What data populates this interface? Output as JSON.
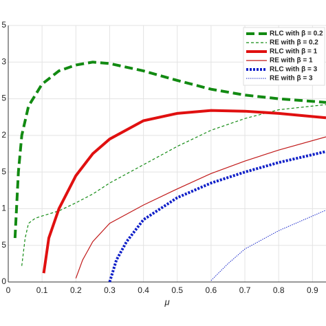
{
  "chart_data": {
    "type": "line",
    "xlabel": "μ",
    "xlim": [
      0,
      0.94
    ],
    "ylim": [
      0,
      3.5
    ],
    "xticks": [
      0,
      0.1,
      0.2,
      0.3,
      0.4,
      0.5,
      0.6,
      0.7,
      0.8,
      0.9
    ],
    "yticks": [
      0,
      {
        "value": 0.5,
        "label": "5"
      },
      1,
      {
        "value": 1.5,
        "label": "5"
      },
      2,
      {
        "value": 2.5,
        "label": "5"
      },
      3,
      {
        "value": 3.5,
        "label": "5"
      }
    ],
    "grid": true,
    "legend": "upper right",
    "series": [
      {
        "name": "RLC with β = 0.2",
        "color": "#128a12",
        "width": 4,
        "dash": "12 6",
        "x": [
          0.02,
          0.03,
          0.04,
          0.06,
          0.1,
          0.15,
          0.2,
          0.25,
          0.3,
          0.4,
          0.5,
          0.6,
          0.7,
          0.8,
          0.94
        ],
        "values": [
          0.6,
          1.5,
          2.0,
          2.4,
          2.7,
          2.88,
          2.96,
          3.0,
          2.98,
          2.88,
          2.75,
          2.63,
          2.55,
          2.5,
          2.45
        ]
      },
      {
        "name": "RE with β = 0.2",
        "color": "#128a12",
        "width": 1.2,
        "dash": "4 3",
        "x": [
          0.04,
          0.05,
          0.06,
          0.08,
          0.1,
          0.15,
          0.2,
          0.25,
          0.3,
          0.4,
          0.5,
          0.6,
          0.7,
          0.8,
          0.94
        ],
        "values": [
          0.22,
          0.6,
          0.8,
          0.87,
          0.9,
          0.97,
          1.08,
          1.2,
          1.35,
          1.6,
          1.85,
          2.07,
          2.23,
          2.35,
          2.42
        ]
      },
      {
        "name": "RLC with β = 1",
        "color": "#e01010",
        "width": 4,
        "dash": "none",
        "x": [
          0.105,
          0.12,
          0.15,
          0.2,
          0.25,
          0.3,
          0.4,
          0.5,
          0.6,
          0.7,
          0.8,
          0.94
        ],
        "values": [
          0.12,
          0.6,
          1.0,
          1.45,
          1.75,
          1.95,
          2.2,
          2.3,
          2.34,
          2.33,
          2.3,
          2.24
        ]
      },
      {
        "name": "RE with β = 1",
        "color": "#c01818",
        "width": 1.2,
        "dash": "none",
        "x": [
          0.2,
          0.22,
          0.25,
          0.3,
          0.4,
          0.5,
          0.6,
          0.7,
          0.8,
          0.94
        ],
        "values": [
          0.05,
          0.3,
          0.55,
          0.8,
          1.05,
          1.27,
          1.48,
          1.65,
          1.8,
          1.98
        ]
      },
      {
        "name": "RLC with β = 3",
        "color": "#1020c8",
        "width": 4,
        "dash": "3 2",
        "x": [
          0.3,
          0.32,
          0.35,
          0.4,
          0.5,
          0.6,
          0.7,
          0.8,
          0.94
        ],
        "values": [
          0,
          0.3,
          0.55,
          0.85,
          1.15,
          1.35,
          1.5,
          1.63,
          1.78
        ]
      },
      {
        "name": "RE with β = 3",
        "color": "#1020c8",
        "width": 1,
        "dash": "1.5 1.5",
        "x": [
          0.6,
          0.65,
          0.7,
          0.8,
          0.94
        ],
        "values": [
          0.02,
          0.25,
          0.45,
          0.7,
          0.98
        ]
      }
    ]
  }
}
